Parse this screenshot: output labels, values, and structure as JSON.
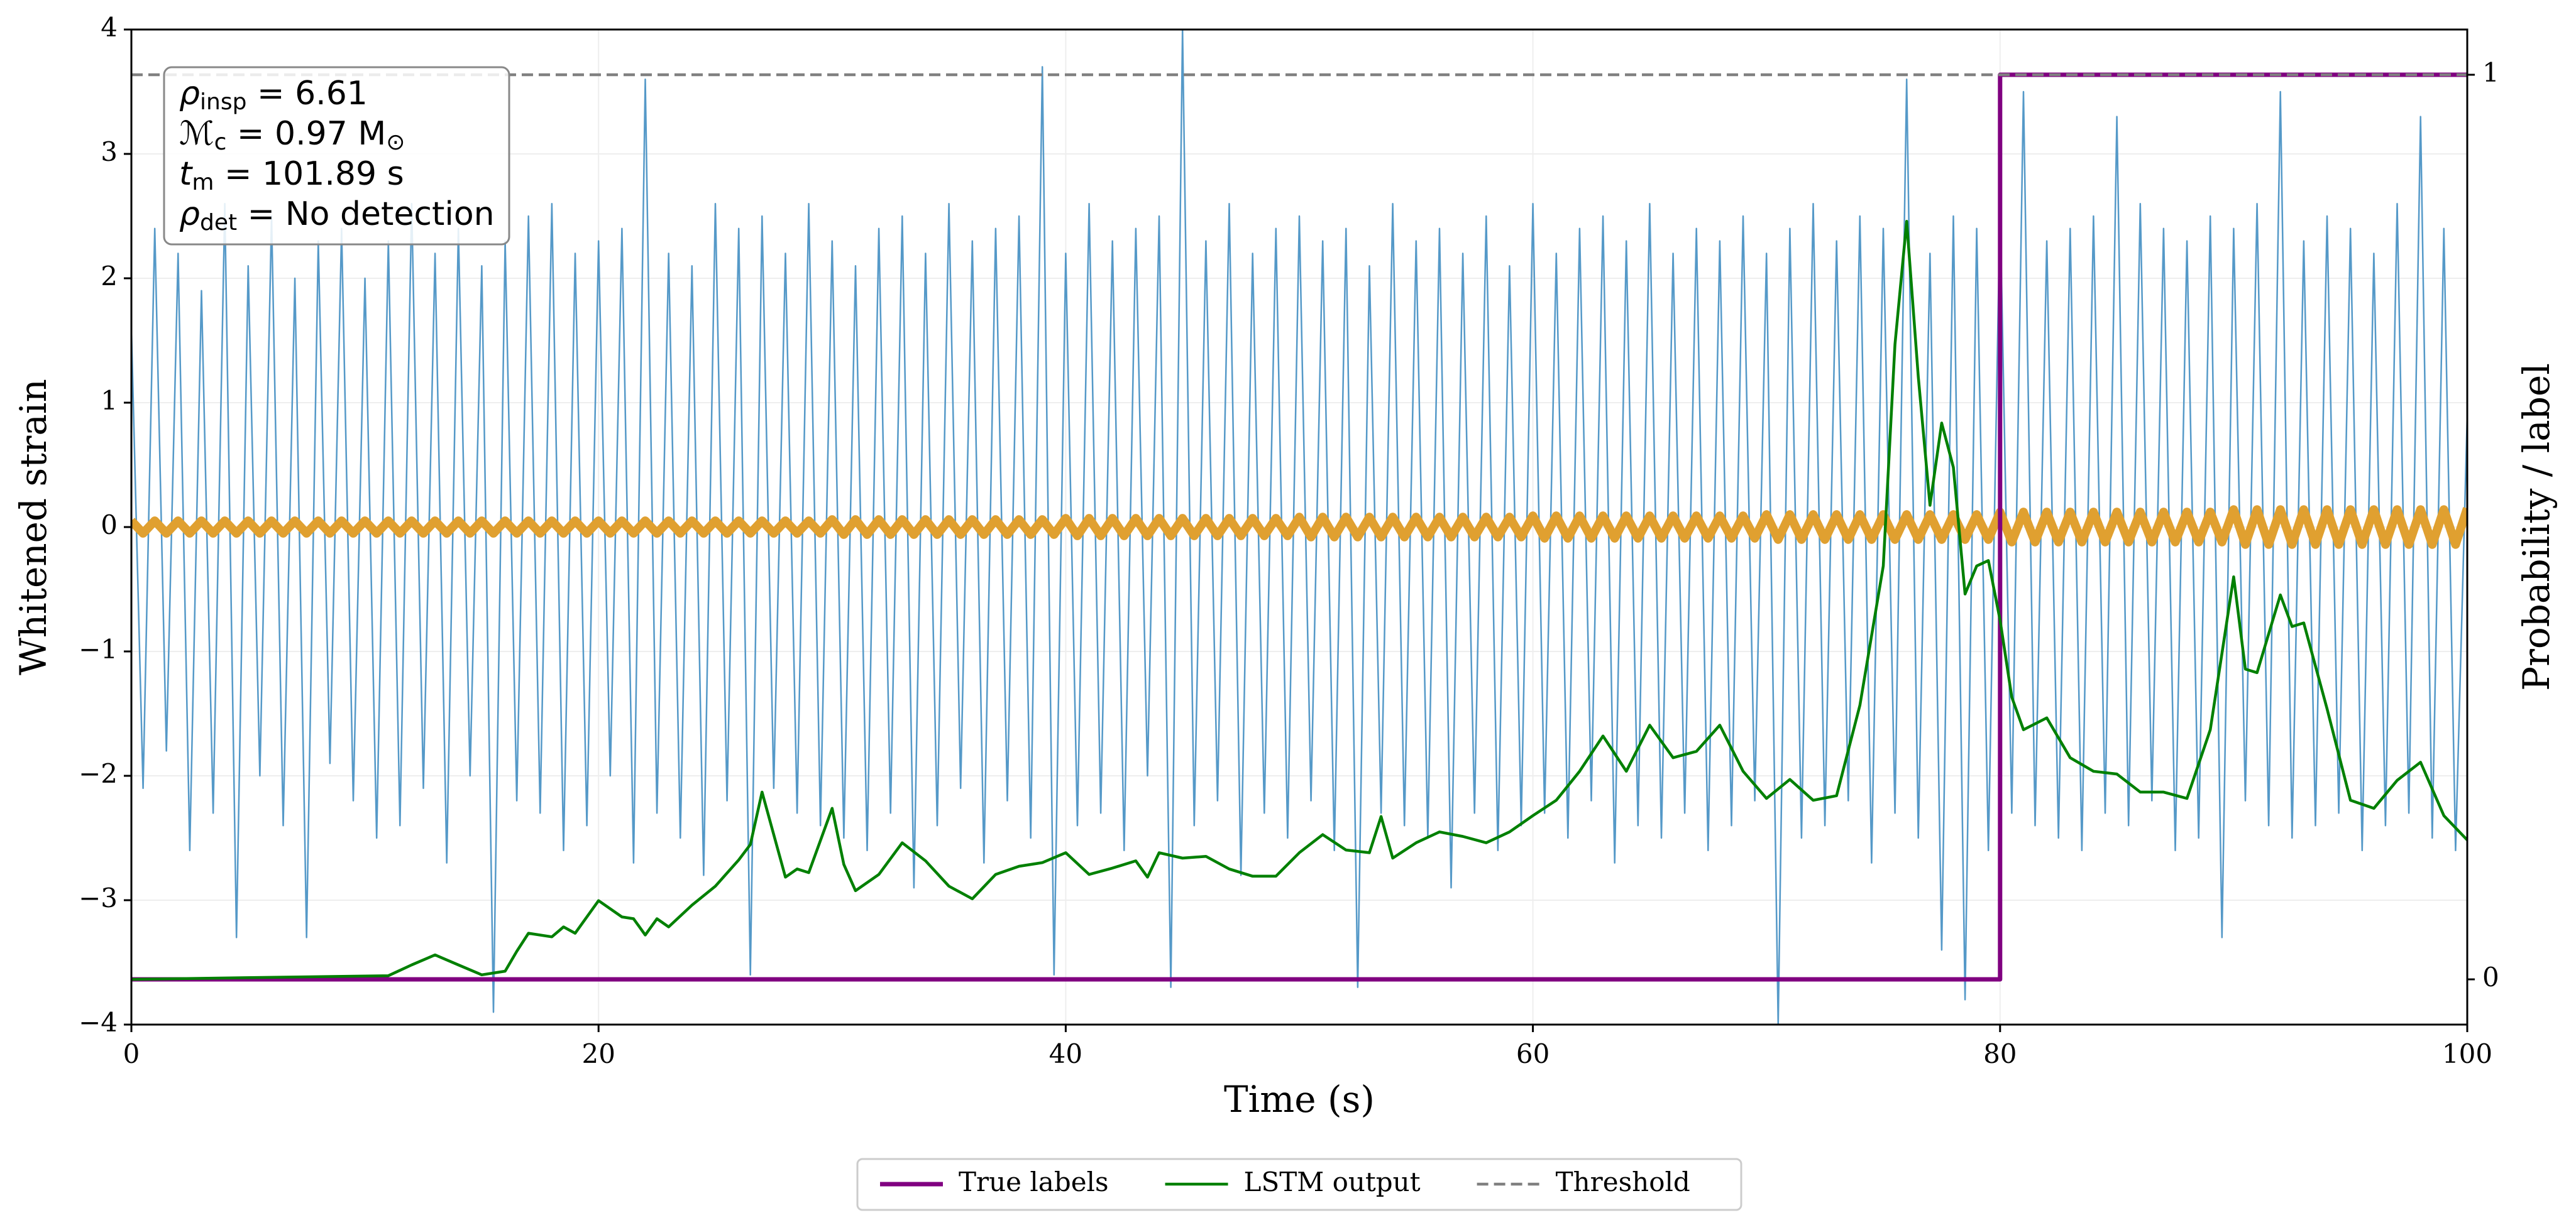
{
  "chart_data": {
    "type": "line",
    "xlabel": "Time (s)",
    "ylabel": "Whitened strain",
    "y2label": "Probability / label",
    "xlim": [
      0,
      100
    ],
    "ylim": [
      -4,
      4
    ],
    "y2lim": [
      -0.05,
      1.05
    ],
    "xticks": [
      0,
      20,
      40,
      60,
      80,
      100
    ],
    "yticks": [
      {
        "value": -4,
        "label": "−4"
      },
      {
        "value": -3,
        "label": "−3"
      },
      {
        "value": -2,
        "label": "−2"
      },
      {
        "value": -1,
        "label": "−1"
      },
      0,
      1,
      2,
      3,
      4
    ],
    "y2ticks": [
      0,
      1
    ],
    "grid": true,
    "legend": "below",
    "annotations": [
      {
        "parts": [
          "ρ",
          "insp",
          " = 6.61"
        ]
      },
      {
        "parts": [
          "ℳ",
          "c",
          " = 0.97 M",
          "⊙"
        ]
      },
      {
        "parts": [
          "t",
          "m",
          " = 101.89 s"
        ]
      },
      {
        "parts": [
          "ρ",
          "det",
          " = No detection"
        ]
      }
    ],
    "x": [
      0,
      0.5,
      1,
      1.5,
      2,
      2.5,
      3,
      3.5,
      4,
      4.5,
      5,
      5.5,
      6,
      6.5,
      7,
      7.5,
      8,
      8.5,
      9,
      9.5,
      10,
      10.5,
      11,
      11.5,
      12,
      12.5,
      13,
      13.5,
      14,
      14.5,
      15,
      15.5,
      16,
      16.5,
      17,
      17.5,
      18,
      18.5,
      19,
      19.5,
      20,
      20.5,
      21,
      21.5,
      22,
      22.5,
      23,
      23.5,
      24,
      24.5,
      25,
      25.5,
      26,
      26.5,
      27,
      27.5,
      28,
      28.5,
      29,
      29.5,
      30,
      30.5,
      31,
      31.5,
      32,
      32.5,
      33,
      33.5,
      34,
      34.5,
      35,
      35.5,
      36,
      36.5,
      37,
      37.5,
      38,
      38.5,
      39,
      39.5,
      40,
      40.5,
      41,
      41.5,
      42,
      42.5,
      43,
      43.5,
      44,
      44.5,
      45,
      45.5,
      46,
      46.5,
      47,
      47.5,
      48,
      48.5,
      49,
      49.5,
      50,
      50.5,
      51,
      51.5,
      52,
      52.5,
      53,
      53.5,
      54,
      54.5,
      55,
      55.5,
      56,
      56.5,
      57,
      57.5,
      58,
      58.5,
      59,
      59.5,
      60,
      60.5,
      61,
      61.5,
      62,
      62.5,
      63,
      63.5,
      64,
      64.5,
      65,
      65.5,
      66,
      66.5,
      67,
      67.5,
      68,
      68.5,
      69,
      69.5,
      70,
      70.5,
      71,
      71.5,
      72,
      72.5,
      73,
      73.5,
      74,
      74.5,
      75,
      75.5,
      76,
      76.5,
      77,
      77.5,
      78,
      78.5,
      79,
      79.5,
      80,
      80.5,
      81,
      81.5,
      82,
      82.5,
      83,
      83.5,
      84,
      84.5,
      85,
      85.5,
      86,
      86.5,
      87,
      87.5,
      88,
      88.5,
      89,
      89.5,
      90,
      90.5,
      91,
      91.5,
      92,
      92.5,
      93,
      93.5,
      94,
      94.5,
      95,
      95.5,
      96,
      96.5,
      97,
      97.5,
      98,
      98.5,
      99,
      99.5,
      100
    ],
    "series": [
      {
        "color": "#5599c8",
        "width": 2.5,
        "values": [
          1.6,
          -2.1,
          2.4,
          -1.8,
          2.2,
          -2.6,
          1.9,
          -2.3,
          2.6,
          -3.3,
          2.1,
          -2.0,
          2.5,
          -2.4,
          2.0,
          -3.3,
          2.3,
          -1.9,
          2.4,
          -2.2,
          2.0,
          -2.5,
          2.3,
          -2.4,
          2.6,
          -2.1,
          2.2,
          -2.7,
          2.4,
          -2.0,
          2.1,
          -3.9,
          2.3,
          -2.2,
          2.5,
          -2.3,
          2.6,
          -2.6,
          2.2,
          -2.4,
          2.3,
          -2.0,
          2.4,
          -2.7,
          3.6,
          -2.3,
          2.2,
          -2.5,
          2.1,
          -2.8,
          2.6,
          -2.2,
          2.4,
          -3.6,
          2.5,
          -2.1,
          2.2,
          -2.3,
          2.6,
          -2.4,
          2.3,
          -2.5,
          2.1,
          -2.6,
          2.4,
          -2.3,
          2.5,
          -2.9,
          2.2,
          -2.4,
          2.6,
          -2.1,
          2.3,
          -2.7,
          2.4,
          -2.2,
          2.5,
          -2.5,
          3.7,
          -3.6,
          2.2,
          -2.4,
          2.6,
          -2.3,
          2.3,
          -2.6,
          2.4,
          -2.0,
          2.5,
          -3.7,
          4.0,
          -2.4,
          2.3,
          -2.2,
          2.6,
          -2.8,
          2.2,
          -2.3,
          2.4,
          -2.5,
          2.5,
          -2.2,
          2.3,
          -2.6,
          2.4,
          -3.7,
          2.1,
          -2.3,
          2.6,
          -2.4,
          2.3,
          -2.5,
          2.4,
          -2.9,
          2.2,
          -2.3,
          2.5,
          -2.6,
          2.1,
          -2.4,
          2.6,
          -2.3,
          2.2,
          -2.5,
          2.4,
          -2.2,
          2.5,
          -2.7,
          2.3,
          -2.4,
          2.6,
          -2.5,
          2.2,
          -2.3,
          2.4,
          -2.6,
          2.3,
          -2.4,
          2.5,
          -2.2,
          2.2,
          -4.0,
          2.4,
          -2.5,
          2.6,
          -2.4,
          2.3,
          -2.2,
          2.5,
          -2.7,
          2.4,
          -2.3,
          3.6,
          -2.5,
          2.2,
          -3.4,
          2.5,
          -3.8,
          2.4,
          -2.6,
          2.6,
          -2.3,
          3.5,
          -2.4,
          2.3,
          -2.5,
          2.4,
          -2.6,
          2.5,
          -2.3,
          3.3,
          -2.4,
          2.6,
          -2.2,
          2.4,
          -2.6,
          2.3,
          -2.5,
          2.5,
          -3.3,
          2.4,
          -2.2,
          2.6,
          -2.4,
          3.5,
          -2.5,
          2.3,
          -2.4,
          2.5,
          -2.3,
          2.4,
          -2.6,
          2.2,
          -2.4,
          2.6,
          -2.3,
          3.3,
          -2.5,
          2.4,
          -2.6,
          0.9
        ]
      },
      {
        "color": "#e0a030",
        "width": 14,
        "values": [
          0.05,
          -0.05,
          0.05,
          -0.05,
          0.05,
          -0.05,
          0.05,
          -0.05,
          0.05,
          -0.05,
          0.05,
          -0.05,
          0.05,
          -0.05,
          0.05,
          -0.05,
          0.05,
          -0.05,
          0.05,
          -0.05,
          0.05,
          -0.05,
          0.05,
          -0.05,
          0.05,
          -0.05,
          0.05,
          -0.05,
          0.05,
          -0.05,
          0.05,
          -0.05,
          0.05,
          -0.05,
          0.05,
          -0.05,
          0.05,
          -0.05,
          0.05,
          -0.05,
          0.05,
          -0.05,
          0.05,
          -0.05,
          0.05,
          -0.05,
          0.05,
          -0.05,
          0.05,
          -0.05,
          0.05,
          -0.05,
          0.05,
          -0.05,
          0.05,
          -0.05,
          0.05,
          -0.05,
          0.05,
          -0.05,
          0.06,
          -0.06,
          0.06,
          -0.06,
          0.06,
          -0.06,
          0.06,
          -0.06,
          0.06,
          -0.06,
          0.06,
          -0.06,
          0.06,
          -0.06,
          0.06,
          -0.06,
          0.06,
          -0.06,
          0.06,
          -0.06,
          0.07,
          -0.07,
          0.07,
          -0.07,
          0.07,
          -0.07,
          0.07,
          -0.07,
          0.07,
          -0.07,
          0.07,
          -0.07,
          0.07,
          -0.07,
          0.07,
          -0.07,
          0.07,
          -0.07,
          0.07,
          -0.07,
          0.08,
          -0.08,
          0.08,
          -0.08,
          0.08,
          -0.08,
          0.08,
          -0.08,
          0.08,
          -0.08,
          0.08,
          -0.08,
          0.08,
          -0.08,
          0.08,
          -0.08,
          0.08,
          -0.08,
          0.08,
          -0.08,
          0.09,
          -0.09,
          0.09,
          -0.09,
          0.09,
          -0.09,
          0.09,
          -0.09,
          0.09,
          -0.09,
          0.09,
          -0.09,
          0.09,
          -0.09,
          0.09,
          -0.09,
          0.09,
          -0.09,
          0.09,
          -0.09,
          0.1,
          -0.1,
          0.1,
          -0.1,
          0.1,
          -0.1,
          0.1,
          -0.1,
          0.1,
          -0.1,
          0.1,
          -0.1,
          0.1,
          -0.1,
          0.1,
          -0.1,
          0.1,
          -0.1,
          0.1,
          -0.1,
          0.12,
          -0.12,
          0.12,
          -0.12,
          0.12,
          -0.12,
          0.12,
          -0.12,
          0.12,
          -0.12,
          0.12,
          -0.12,
          0.12,
          -0.12,
          0.12,
          -0.12,
          0.12,
          -0.12,
          0.12,
          -0.12,
          0.14,
          -0.14,
          0.14,
          -0.14,
          0.14,
          -0.14,
          0.14,
          -0.14,
          0.14,
          -0.14,
          0.14,
          -0.14,
          0.14,
          -0.14,
          0.14,
          -0.14,
          0.14,
          -0.14,
          0.14,
          -0.14,
          0.15
        ]
      },
      {
        "name": "True labels",
        "color": "#800080",
        "width": 7,
        "axis": "y2",
        "x": [
          0,
          80,
          80,
          100
        ],
        "values": [
          0,
          0,
          1,
          1
        ]
      },
      {
        "name": "LSTM output",
        "color": "#008000",
        "width": 4.5,
        "axis": "y2",
        "x": [
          0,
          11,
          12,
          13,
          14,
          15,
          16,
          16.5,
          17,
          18,
          18.5,
          19,
          20,
          21,
          21.5,
          22,
          22.5,
          23,
          24,
          25,
          26,
          26.5,
          27,
          28,
          28.5,
          29,
          30,
          30.5,
          31,
          32,
          33,
          34,
          35,
          36,
          37,
          38,
          39,
          40,
          41,
          42,
          43,
          43.5,
          44,
          45,
          46,
          47,
          48,
          49,
          50,
          51,
          52,
          53,
          53.5,
          54,
          55,
          56,
          57,
          58,
          59,
          60,
          61,
          62,
          63,
          64,
          65,
          66,
          67,
          68,
          69,
          70,
          71,
          72,
          73,
          74,
          75,
          75.5,
          76,
          76.5,
          77,
          77.5,
          78,
          78.5,
          79,
          79.5,
          80,
          80.5,
          81,
          82,
          83,
          84,
          85,
          86,
          87,
          88,
          89,
          90,
          90.5,
          91,
          92,
          92.5,
          93,
          94,
          95,
          96,
          97,
          98,
          99,
          100
        ],
        "values": [
          0,
          0.004,
          0.016,
          0.027,
          0.016,
          0.005,
          0.009,
          0.031,
          0.051,
          0.047,
          0.058,
          0.051,
          0.087,
          0.069,
          0.067,
          0.049,
          0.067,
          0.058,
          0.082,
          0.103,
          0.132,
          0.149,
          0.207,
          0.113,
          0.122,
          0.118,
          0.189,
          0.127,
          0.098,
          0.116,
          0.151,
          0.131,
          0.103,
          0.089,
          0.116,
          0.125,
          0.129,
          0.14,
          0.116,
          0.123,
          0.131,
          0.113,
          0.14,
          0.134,
          0.136,
          0.122,
          0.114,
          0.114,
          0.14,
          0.16,
          0.143,
          0.14,
          0.18,
          0.134,
          0.151,
          0.163,
          0.158,
          0.151,
          0.163,
          0.181,
          0.198,
          0.23,
          0.269,
          0.23,
          0.281,
          0.245,
          0.252,
          0.281,
          0.23,
          0.2,
          0.221,
          0.198,
          0.203,
          0.303,
          0.457,
          0.702,
          0.838,
          0.666,
          0.524,
          0.615,
          0.566,
          0.426,
          0.457,
          0.463,
          0.397,
          0.312,
          0.276,
          0.289,
          0.245,
          0.23,
          0.227,
          0.207,
          0.207,
          0.2,
          0.276,
          0.445,
          0.343,
          0.339,
          0.425,
          0.39,
          0.394,
          0.299,
          0.198,
          0.189,
          0.22,
          0.24,
          0.181,
          0.154
        ]
      },
      {
        "name": "Threshold",
        "color": "#808080",
        "width": 4.5,
        "dash": true,
        "axis": "y2",
        "x": [
          0,
          100
        ],
        "values": [
          1,
          1
        ]
      }
    ]
  }
}
